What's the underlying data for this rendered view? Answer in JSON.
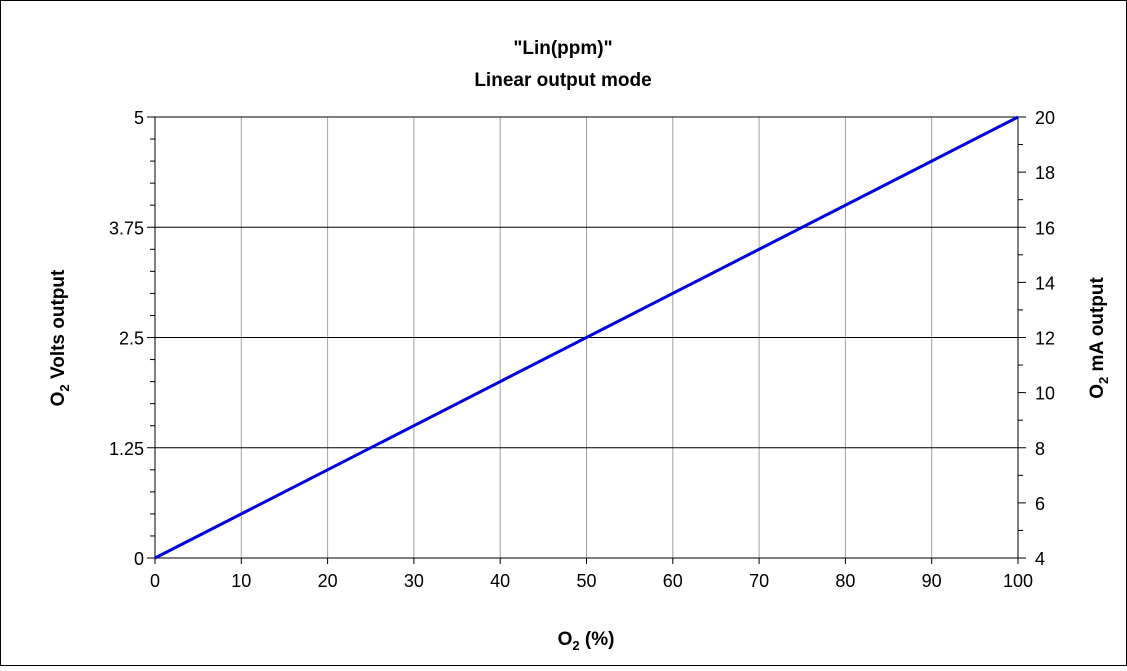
{
  "chart_data": {
    "type": "line",
    "title": "\"Lin(ppm)\"",
    "subtitle": "Linear output mode",
    "xlabel": {
      "base": "O",
      "sub": "2",
      "rest": " (%)"
    },
    "ylabel_left": {
      "base": "O",
      "sub": "2",
      "rest": " Volts output"
    },
    "ylabel_right": {
      "base": "O",
      "sub": "2",
      "rest": " mA output"
    },
    "xlim": [
      0,
      100
    ],
    "ylim": [
      0,
      5
    ],
    "y2lim": [
      4,
      20
    ],
    "x_ticks": [
      0,
      10,
      20,
      30,
      40,
      50,
      60,
      70,
      80,
      90,
      100
    ],
    "x_tick_labels": [
      "0",
      "10",
      "20",
      "30",
      "40",
      "50",
      "60",
      "70",
      "80",
      "90",
      "100"
    ],
    "y_ticks": [
      0,
      1.25,
      2.5,
      3.75,
      5
    ],
    "y_tick_labels": [
      "0",
      "1.25",
      "2.5",
      "3.75",
      "5"
    ],
    "y_minor_ticks": [
      0.25,
      0.5,
      0.75,
      1,
      1.5,
      1.75,
      2,
      2.25,
      2.75,
      3,
      3.25,
      3.5,
      4,
      4.25,
      4.5,
      4.75
    ],
    "y2_ticks": [
      4,
      6,
      8,
      10,
      12,
      14,
      16,
      18,
      20
    ],
    "y2_tick_labels": [
      "4",
      "6",
      "8",
      "10",
      "12",
      "14",
      "16",
      "18",
      "20"
    ],
    "y2_minor_ticks": [
      5,
      7,
      9,
      11,
      13,
      15,
      17,
      19
    ],
    "grid": true,
    "legend": "none",
    "colors": {
      "line": "#0000dd",
      "grid": "#a0a0a0",
      "axes": "#000000",
      "border": "#000000"
    },
    "series": [
      {
        "x": [
          0,
          100
        ],
        "y": [
          0,
          5
        ]
      }
    ]
  }
}
